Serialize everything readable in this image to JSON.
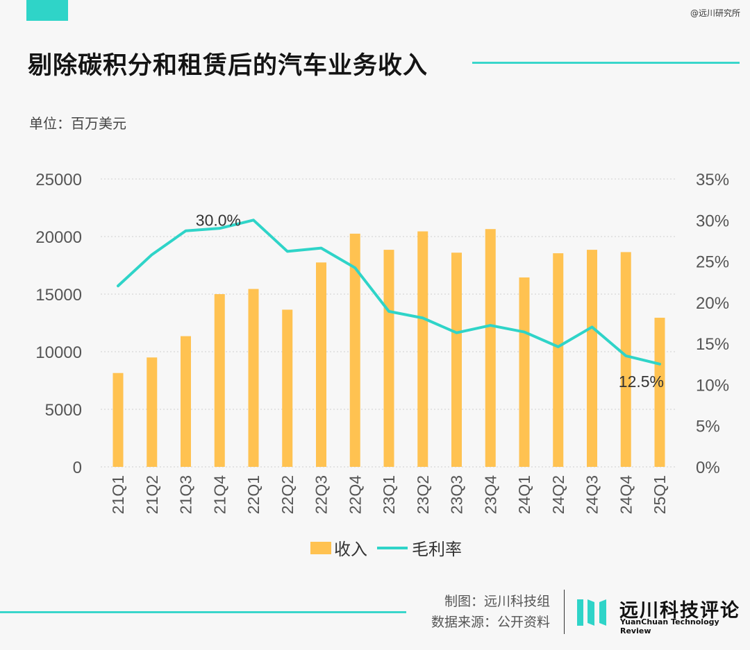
{
  "header": {
    "watermark": "@远川研究所",
    "title": "剔除碳积分和租赁后的汽车业务收入",
    "unit": "单位：百万美元"
  },
  "colors": {
    "accent": "#2fd4c8",
    "bar": "#ffc251",
    "background": "#f7f7f7"
  },
  "chart_data": {
    "type": "bar+line",
    "categories": [
      "21Q1",
      "21Q2",
      "21Q3",
      "21Q4",
      "22Q1",
      "22Q2",
      "22Q3",
      "22Q4",
      "23Q1",
      "23Q2",
      "23Q3",
      "23Q4",
      "24Q1",
      "24Q2",
      "24Q3",
      "24Q4",
      "25Q1"
    ],
    "series": [
      {
        "name": "收入",
        "type": "bar",
        "axis": "left",
        "values": [
          8150,
          9500,
          11350,
          15000,
          15450,
          13650,
          17750,
          20250,
          18850,
          20450,
          18600,
          20650,
          16450,
          18550,
          18850,
          18650,
          12950
        ]
      },
      {
        "name": "毛利率",
        "type": "line",
        "axis": "right",
        "values": [
          22.0,
          25.8,
          28.7,
          29.0,
          30.0,
          26.2,
          26.6,
          24.2,
          18.9,
          18.1,
          16.3,
          17.2,
          16.4,
          14.6,
          17.0,
          13.5,
          12.5
        ]
      }
    ],
    "yleft": {
      "lim": [
        0,
        25000
      ],
      "ticks": [
        "0",
        "5000",
        "10000",
        "15000",
        "20000",
        "25000"
      ]
    },
    "yright": {
      "lim": [
        0,
        35
      ],
      "ticks": [
        "0%",
        "5%",
        "10%",
        "15%",
        "20%",
        "25%",
        "30%",
        "35%"
      ]
    },
    "annotations": [
      {
        "series": "毛利率",
        "index": 4,
        "text": "30.0%"
      },
      {
        "series": "毛利率",
        "index": 16,
        "text": "12.5%"
      }
    ],
    "grid": "horizontal-dotted",
    "legend": "bottom"
  },
  "legend": {
    "revenue": "收入",
    "margin": "毛利率"
  },
  "footer": {
    "credit_line1": "制图：远川科技组",
    "credit_line2": "数据来源：公开资料",
    "brand_cn": "远川科技评论",
    "brand_en": "YuanChuan Technology Review"
  }
}
